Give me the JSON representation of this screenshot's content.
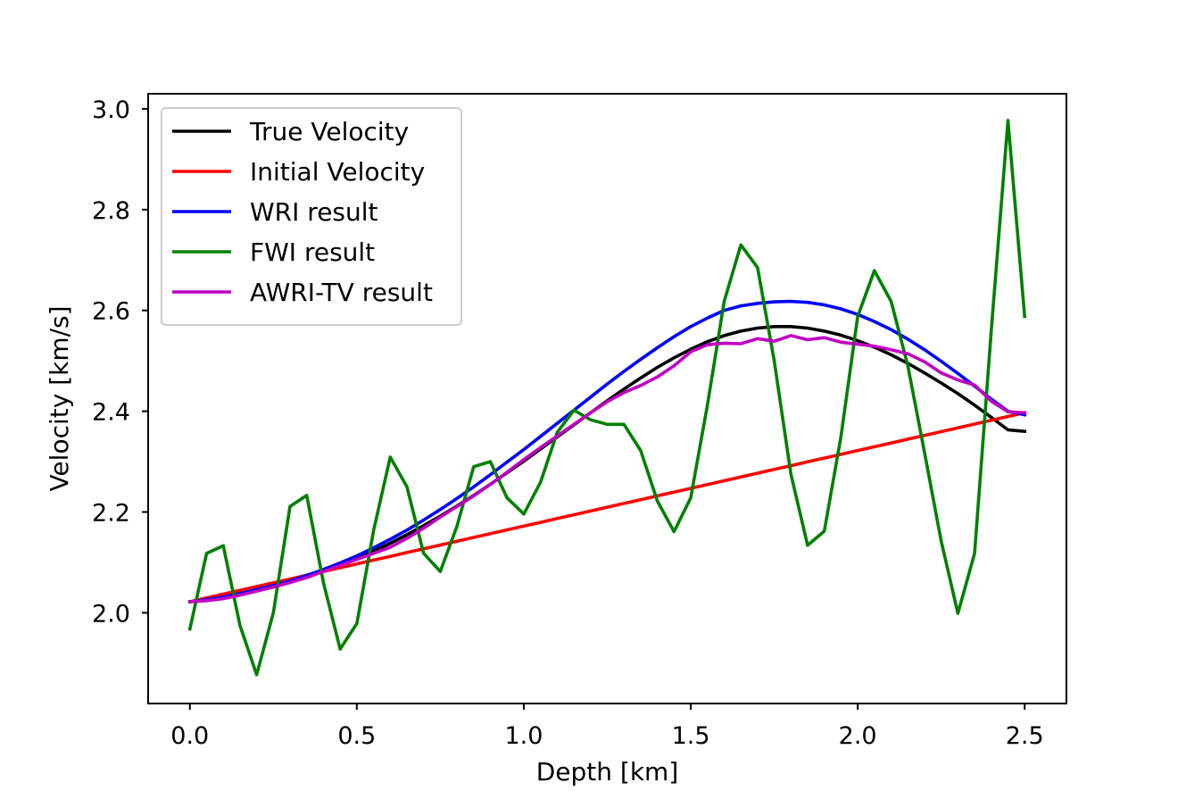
{
  "chart_data": {
    "type": "line",
    "title": "",
    "xlabel": "Depth [km]",
    "ylabel": "Velocity [km/s]",
    "xlim": [
      -0.125,
      2.625
    ],
    "ylim": [
      1.82,
      3.03
    ],
    "xticks": [
      0.0,
      0.5,
      1.0,
      1.5,
      2.0,
      2.5
    ],
    "xtick_labels": [
      "0.0",
      "0.5",
      "1.0",
      "1.5",
      "2.0",
      "2.5"
    ],
    "yticks": [
      2.0,
      2.2,
      2.4,
      2.6,
      2.8,
      3.0
    ],
    "ytick_labels": [
      "2.0",
      "2.2",
      "2.4",
      "2.6",
      "2.8",
      "3.0"
    ],
    "grid": false,
    "legend_position": "upper-left",
    "x": [
      0.0,
      0.05,
      0.1,
      0.15,
      0.2,
      0.25,
      0.3,
      0.35,
      0.4,
      0.45,
      0.5,
      0.55,
      0.6,
      0.65,
      0.7,
      0.75,
      0.8,
      0.85,
      0.9,
      0.95,
      1.0,
      1.05,
      1.1,
      1.15,
      1.2,
      1.25,
      1.3,
      1.35,
      1.4,
      1.45,
      1.5,
      1.55,
      1.6,
      1.65,
      1.7,
      1.75,
      1.8,
      1.85,
      1.9,
      1.95,
      2.0,
      2.05,
      2.1,
      2.15,
      2.2,
      2.25,
      2.3,
      2.35,
      2.4,
      2.45,
      2.5
    ],
    "series": [
      {
        "name": "True Velocity",
        "color": "#000000",
        "values": [
          2.022,
          2.026,
          2.031,
          2.038,
          2.045,
          2.053,
          2.062,
          2.072,
          2.083,
          2.095,
          2.108,
          2.122,
          2.138,
          2.155,
          2.173,
          2.192,
          2.212,
          2.233,
          2.255,
          2.278,
          2.301,
          2.325,
          2.349,
          2.373,
          2.397,
          2.421,
          2.444,
          2.466,
          2.487,
          2.506,
          2.523,
          2.538,
          2.55,
          2.559,
          2.565,
          2.568,
          2.568,
          2.565,
          2.559,
          2.551,
          2.54,
          2.527,
          2.512,
          2.495,
          2.476,
          2.456,
          2.435,
          2.412,
          2.388,
          2.363,
          2.36
        ]
      },
      {
        "name": "Initial Velocity",
        "color": "#ff0000",
        "values": [
          2.022,
          2.0295,
          2.037,
          2.0445,
          2.052,
          2.0595,
          2.067,
          2.0745,
          2.082,
          2.0895,
          2.097,
          2.1045,
          2.112,
          2.1195,
          2.127,
          2.1345,
          2.142,
          2.1495,
          2.157,
          2.1645,
          2.172,
          2.1795,
          2.187,
          2.1945,
          2.202,
          2.2095,
          2.217,
          2.2245,
          2.232,
          2.2395,
          2.247,
          2.2545,
          2.262,
          2.2695,
          2.277,
          2.2845,
          2.292,
          2.2995,
          2.307,
          2.3145,
          2.322,
          2.3295,
          2.337,
          2.3445,
          2.352,
          2.3595,
          2.367,
          2.3745,
          2.382,
          2.3895,
          2.397
        ]
      },
      {
        "name": "WRI result",
        "color": "#0000ff",
        "values": [
          2.022,
          2.026,
          2.031,
          2.038,
          2.046,
          2.054,
          2.063,
          2.074,
          2.086,
          2.099,
          2.113,
          2.129,
          2.146,
          2.164,
          2.184,
          2.205,
          2.227,
          2.25,
          2.274,
          2.299,
          2.324,
          2.35,
          2.376,
          2.402,
          2.428,
          2.454,
          2.479,
          2.503,
          2.526,
          2.548,
          2.568,
          2.585,
          2.6,
          2.609,
          2.614,
          2.617,
          2.618,
          2.616,
          2.611,
          2.603,
          2.592,
          2.578,
          2.562,
          2.543,
          2.522,
          2.499,
          2.475,
          2.45,
          2.424,
          2.4,
          2.393
        ]
      },
      {
        "name": "FWI result",
        "color": "#008000",
        "values": [
          1.968,
          2.118,
          2.133,
          1.975,
          1.877,
          2.0,
          2.211,
          2.233,
          2.06,
          1.928,
          1.979,
          2.163,
          2.309,
          2.25,
          2.118,
          2.082,
          2.172,
          2.29,
          2.3,
          2.228,
          2.196,
          2.259,
          2.358,
          2.402,
          2.383,
          2.374,
          2.374,
          2.322,
          2.222,
          2.161,
          2.228,
          2.413,
          2.618,
          2.73,
          2.685,
          2.5,
          2.275,
          2.134,
          2.162,
          2.35,
          2.588,
          2.679,
          2.618,
          2.49,
          2.318,
          2.142,
          1.999,
          2.118,
          2.56,
          2.977,
          2.588
        ]
      },
      {
        "name": "AWRI-TV result",
        "color": "#c000c0",
        "values": [
          2.022,
          2.024,
          2.028,
          2.035,
          2.043,
          2.051,
          2.06,
          2.07,
          2.082,
          2.094,
          2.106,
          2.118,
          2.13,
          2.148,
          2.168,
          2.19,
          2.211,
          2.232,
          2.255,
          2.279,
          2.304,
          2.328,
          2.351,
          2.374,
          2.397,
          2.419,
          2.437,
          2.451,
          2.468,
          2.49,
          2.518,
          2.532,
          2.535,
          2.534,
          2.544,
          2.539,
          2.55,
          2.542,
          2.546,
          2.537,
          2.533,
          2.529,
          2.522,
          2.514,
          2.498,
          2.476,
          2.462,
          2.452,
          2.42,
          2.399,
          2.397
        ]
      }
    ]
  }
}
